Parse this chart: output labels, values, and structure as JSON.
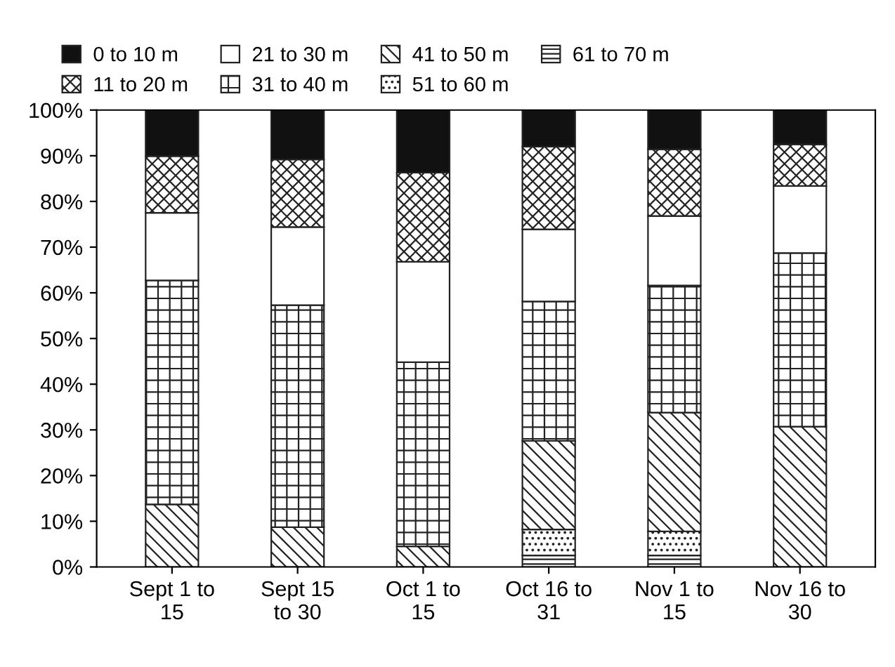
{
  "chart_data": {
    "type": "bar",
    "stacked": true,
    "categories": [
      "Sept 1 to\n15",
      "Sept 15\nto 30",
      "Oct 1 to\n15",
      "Oct 16 to\n31",
      "Nov 1 to\n15",
      "Nov 16 to\n30"
    ],
    "series": [
      {
        "name": "61 to 70 m",
        "color": "#222222",
        "values": [
          0,
          0,
          0,
          2.5,
          2.5,
          0
        ]
      },
      {
        "name": "51 to 60 m",
        "color": "#222222",
        "values": [
          0,
          0,
          0,
          5.7,
          5.3,
          0
        ]
      },
      {
        "name": "41 to 50 m",
        "color": "#222222",
        "values": [
          13.7,
          8.7,
          4.5,
          19.4,
          26.0,
          30.7
        ]
      },
      {
        "name": "31 to 40 m",
        "color": "#222222",
        "values": [
          49.0,
          48.6,
          40.3,
          30.5,
          27.8,
          38.0
        ]
      },
      {
        "name": "21 to 30 m",
        "color": "#ffffff",
        "values": [
          14.8,
          17.1,
          22.0,
          15.8,
          15.2,
          14.7
        ]
      },
      {
        "name": "11 to 20 m",
        "color": "#222222",
        "values": [
          12.4,
          14.8,
          19.5,
          18.1,
          14.6,
          9.1
        ]
      },
      {
        "name": "0 to 10 m",
        "color": "#111111",
        "values": [
          10.1,
          10.8,
          13.7,
          8.0,
          8.6,
          7.5
        ]
      }
    ],
    "ylim": [
      0,
      100
    ],
    "yticks": [
      {
        "value": 0,
        "label": "0%"
      },
      {
        "value": 10,
        "label": "10%"
      },
      {
        "value": 20,
        "label": "20%"
      },
      {
        "value": 30,
        "label": "30%"
      },
      {
        "value": 40,
        "label": "40%"
      },
      {
        "value": 50,
        "label": "50%"
      },
      {
        "value": 60,
        "label": "60%"
      },
      {
        "value": 70,
        "label": "70%"
      },
      {
        "value": 80,
        "label": "80%"
      },
      {
        "value": 90,
        "label": "90%"
      },
      {
        "value": 100,
        "label": "100%"
      }
    ],
    "legend": "top",
    "grid": false
  }
}
